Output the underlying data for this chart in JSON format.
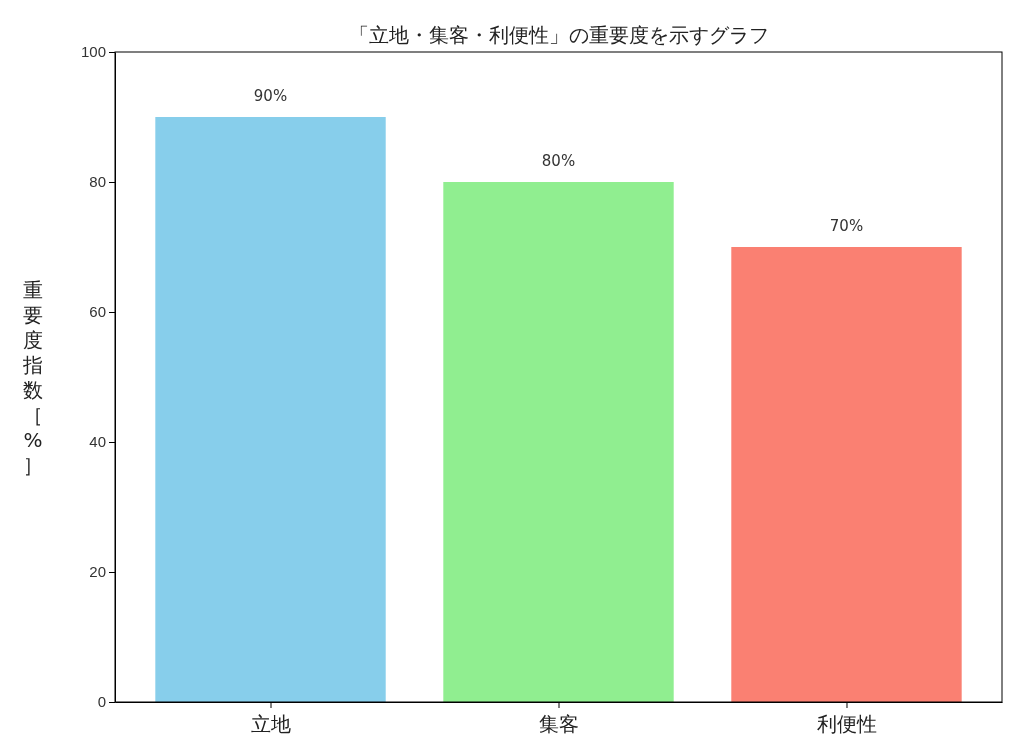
{
  "chart_data": {
    "type": "bar",
    "title": "「立地・集客・利便性」の重要度を示すグラフ",
    "ylabel": "重要度指数［%］",
    "categories": [
      "立地",
      "集客",
      "利便性"
    ],
    "values": [
      90,
      80,
      70
    ],
    "colors": [
      "#87ceeb",
      "#90ee90",
      "#fa8072"
    ],
    "value_labels": [
      "90%",
      "80%",
      "70%"
    ],
    "ylim": [
      0,
      100
    ],
    "yticks": [
      0,
      20,
      40,
      60,
      80,
      100
    ],
    "grid": false
  }
}
